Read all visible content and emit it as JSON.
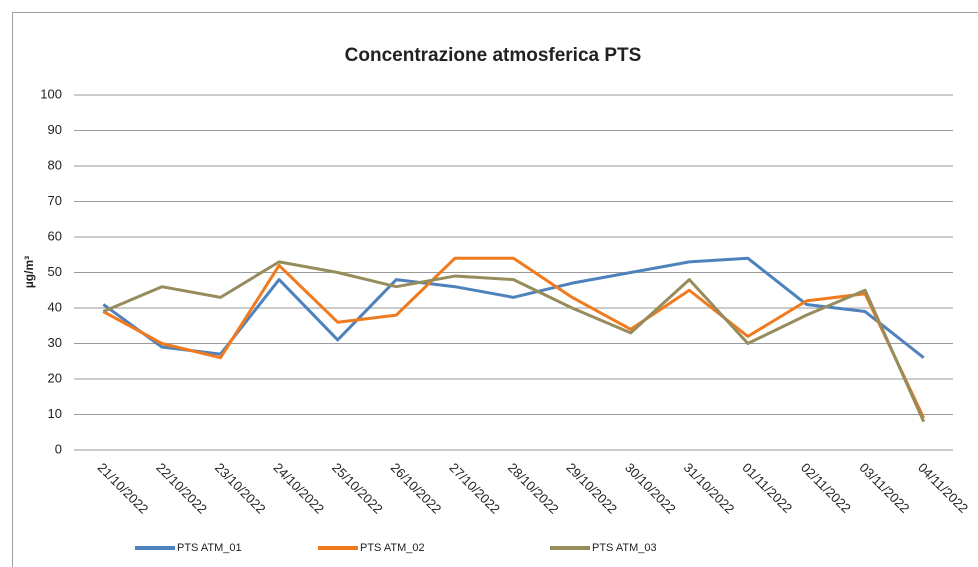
{
  "chart_data": {
    "type": "line",
    "title": "Concentrazione  atmosferica PTS",
    "y_label": "µg/m³",
    "categories": [
      "21/10/2022",
      "22/10/2022",
      "23/10/2022",
      "24/10/2022",
      "25/10/2022",
      "26/10/2022",
      "27/10/2022",
      "28/10/2022",
      "29/10/2022",
      "30/10/2022",
      "31/10/2022",
      "01/11/2022",
      "02/11/2022",
      "03/11/2022",
      "04/11/2022"
    ],
    "series": [
      {
        "name": "PTS ATM_01",
        "color": "#4f81bd",
        "values": [
          41,
          29,
          27,
          48,
          31,
          48,
          46,
          43,
          47,
          50,
          53,
          54,
          41,
          39,
          26
        ]
      },
      {
        "name": "PTS ATM_02",
        "color": "#f07a1e",
        "values": [
          39,
          30,
          26,
          52,
          36,
          38,
          54,
          54,
          43,
          34,
          45,
          32,
          42,
          44,
          9
        ]
      },
      {
        "name": "PTS ATM_03",
        "color": "#968c5c",
        "values": [
          39,
          46,
          43,
          53,
          50,
          46,
          49,
          48,
          40,
          33,
          48,
          30,
          38,
          45,
          8
        ]
      }
    ],
    "ylim": [
      0,
      100
    ],
    "yticks": [
      0,
      10,
      20,
      30,
      40,
      50,
      60,
      70,
      80,
      90,
      100
    ],
    "grid": true,
    "legend": "bottom"
  }
}
